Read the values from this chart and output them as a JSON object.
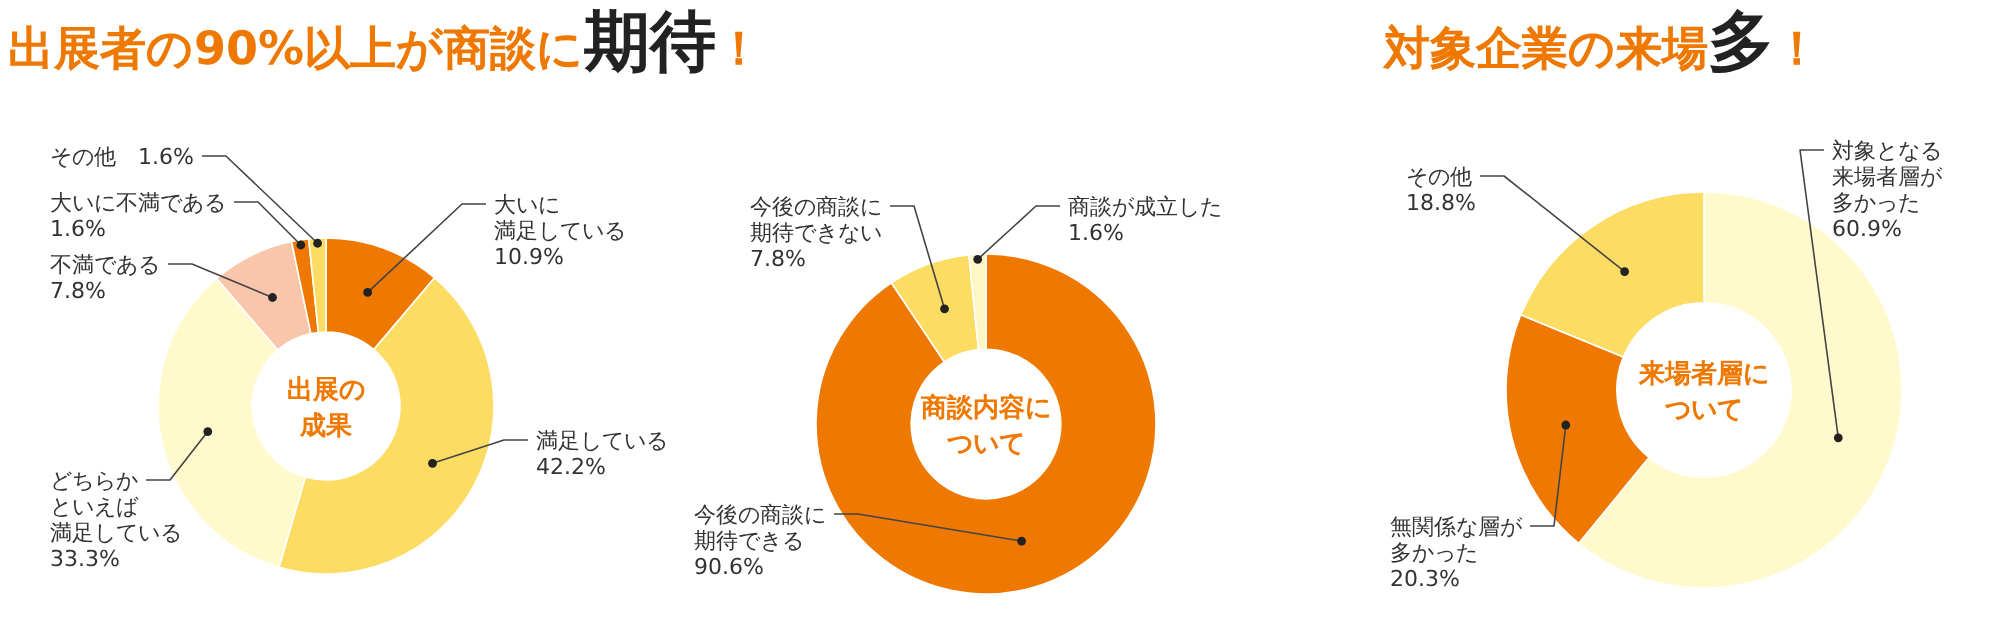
{
  "chart_data": [
    {
      "type": "donut",
      "title": "出展者の90%以上が商談に**期待**！",
      "subtitle": "出展の成果",
      "categories": [
        "大いに満足している",
        "満足している",
        "どちらかといえば満足している",
        "不満である",
        "大いに不満である",
        "その他"
      ],
      "values": [
        10.9,
        42.2,
        33.3,
        7.8,
        1.6,
        1.6
      ],
      "value_labels": [
        "10.9%",
        "42.2%",
        "33.3%",
        "7.8%",
        "1.6%",
        "1.6%"
      ],
      "colors": [
        "#ee7800",
        "#fddc64",
        "#fff9cc",
        "#f9c6ab",
        "#ee7800",
        "#fddc64"
      ],
      "legend": false
    },
    {
      "type": "donut",
      "subtitle": "商談内容について",
      "categories": [
        "今後の商談に期待できる",
        "今後の商談に期待できない",
        "商談が成立した"
      ],
      "values": [
        90.6,
        7.8,
        1.6
      ],
      "value_labels": [
        "90.6%",
        "7.8%",
        "1.6%"
      ],
      "colors": [
        "#ee7800",
        "#fddc64",
        "#fff6c4"
      ],
      "legend": false
    },
    {
      "type": "donut",
      "title": "対象企業の来場**多**！",
      "subtitle": "来場者層について",
      "categories": [
        "対象となる来場者層が多かった",
        "無関係な層が多かった",
        "その他"
      ],
      "values": [
        60.9,
        20.3,
        18.8
      ],
      "value_labels": [
        "60.9%",
        "20.3%",
        "18.8%"
      ],
      "colors": [
        "#fff9cc",
        "#ee7800",
        "#fddc64"
      ],
      "legend": false
    }
  ]
}
